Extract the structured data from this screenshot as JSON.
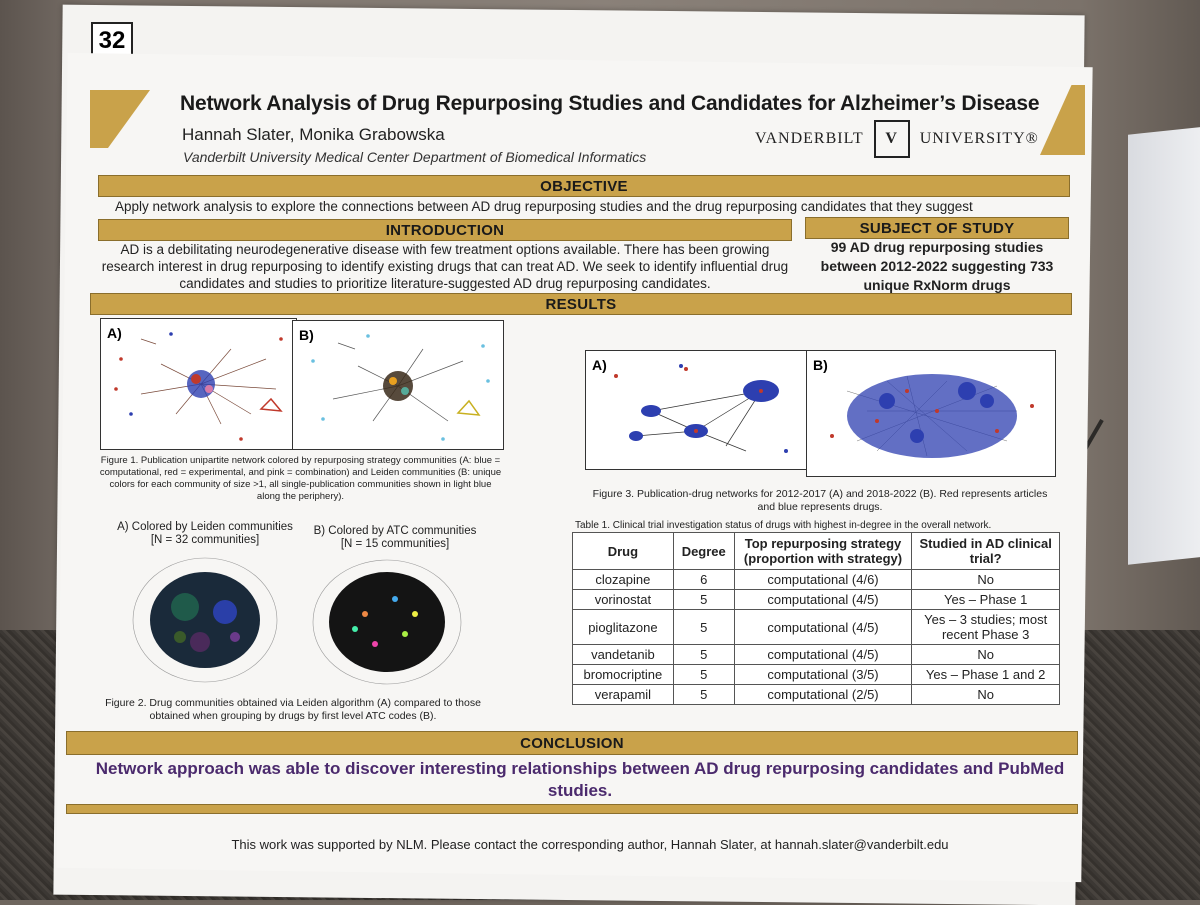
{
  "poster_number": "32",
  "title": "Network Analysis of Drug Repurposing Studies and Candidates for Alzheimer’s Disease",
  "authors": "Hannah Slater, Monika Grabowska",
  "affiliation": "Vanderbilt University Medical Center Department of Biomedical Informatics",
  "logo": {
    "left": "VANDERBILT",
    "mark": "V",
    "right": "UNIVERSITY®"
  },
  "objective": {
    "header": "OBJECTIVE",
    "text": "Apply network analysis to explore the connections between AD drug repurposing studies and the drug repurposing candidates that they suggest"
  },
  "introduction": {
    "header": "INTRODUCTION",
    "text": "AD is a debilitating neurodegenerative disease with few treatment options available. There has been growing research interest in drug repurposing to identify existing drugs that can treat AD. We seek to identify influential drug candidates and studies to prioritize literature-suggested AD drug repurposing candidates."
  },
  "subject": {
    "header": "SUBJECT OF STUDY",
    "text": "99 AD drug repurposing studies between 2012-2022 suggesting 733 unique RxNorm drugs"
  },
  "results_header": "RESULTS",
  "figure1": {
    "label_a": "A)",
    "label_b": "B)",
    "caption": "Figure 1. Publication unipartite network colored by repurposing strategy communities (A: blue = computational, red = experimental, and pink = combination) and Leiden communities (B: unique colors for each community of size >1, all single-publication communities shown in light blue along the periphery)."
  },
  "figure2": {
    "title_a": "A) Colored by Leiden communities",
    "sub_a": "[N = 32 communities]",
    "title_b": "B) Colored by ATC communities",
    "sub_b": "[N = 15 communities]",
    "caption": "Figure 2. Drug communities obtained via Leiden algorithm (A) compared to those obtained when grouping by drugs by first level ATC codes (B)."
  },
  "figure3": {
    "label_a": "A)",
    "label_b": "B)",
    "caption": "Figure 3. Publication-drug networks for 2012-2017 (A) and 2018-2022 (B). Red represents articles and blue represents drugs."
  },
  "table1": {
    "caption": "Table 1. Clinical trial investigation status of drugs with highest in-degree in the overall network.",
    "headers": [
      "Drug",
      "Degree",
      "Top repurposing strategy (proportion with strategy)",
      "Studied in AD clinical trial?"
    ],
    "rows": [
      [
        "clozapine",
        "6",
        "computational (4/6)",
        "No"
      ],
      [
        "vorinostat",
        "5",
        "computational (4/5)",
        "Yes – Phase 1"
      ],
      [
        "pioglitazone",
        "5",
        "computational (4/5)",
        "Yes – 3 studies; most recent Phase 3"
      ],
      [
        "vandetanib",
        "5",
        "computational (4/5)",
        "No"
      ],
      [
        "bromocriptine",
        "5",
        "computational (3/5)",
        "Yes – Phase 1 and 2"
      ],
      [
        "verapamil",
        "5",
        "computational (2/5)",
        "No"
      ]
    ]
  },
  "conclusion": {
    "header": "CONCLUSION",
    "text": "Network approach was able to discover interesting relationships between AD drug repurposing candidates and PubMed studies."
  },
  "footer": "This work was supported by NLM. Please contact the corresponding author, Hannah Slater, at hannah.slater@vanderbilt.edu",
  "colors": {
    "gold": "#c9a24a",
    "purple": "#4b2a6d",
    "drug_blue": "#2d3fb0",
    "article_red": "#c0392b"
  }
}
